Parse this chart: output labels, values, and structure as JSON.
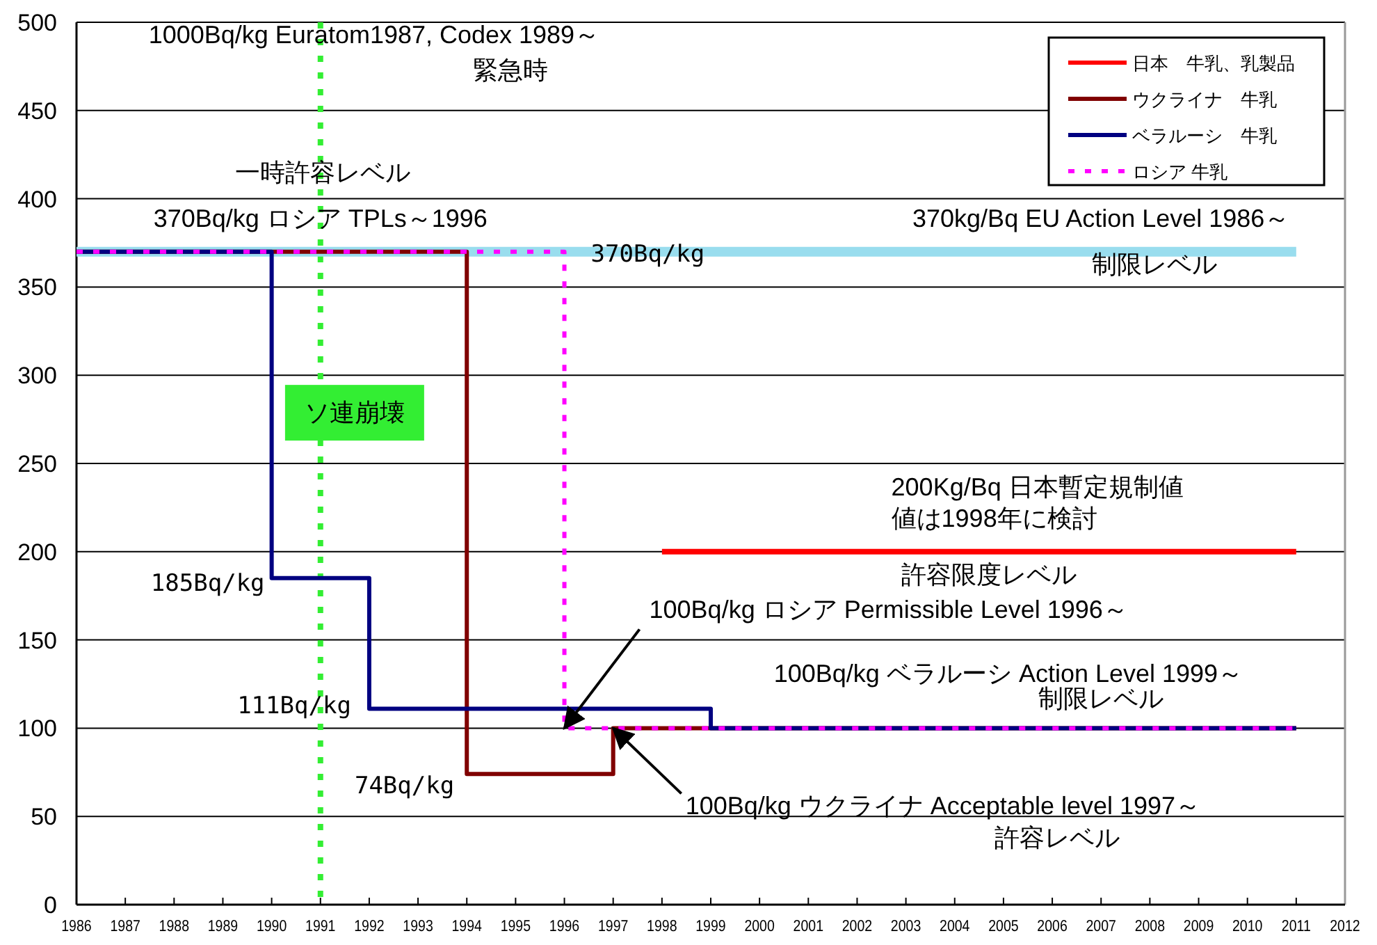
{
  "chart_data": {
    "type": "step",
    "xlim": [
      1986,
      2012
    ],
    "xticks": [
      1986,
      1987,
      1988,
      1989,
      1990,
      1991,
      1992,
      1993,
      1994,
      1995,
      1996,
      1997,
      1998,
      1999,
      2000,
      2001,
      2002,
      2003,
      2004,
      2005,
      2006,
      2007,
      2008,
      2009,
      2010,
      2011,
      2012
    ],
    "ylim": [
      0,
      500
    ],
    "yticks": [
      0,
      50,
      100,
      150,
      200,
      250,
      300,
      350,
      400,
      450,
      500
    ],
    "grid": "y",
    "legend": "top right",
    "series": [
      {
        "name": "日本　牛乳、乳製品",
        "color": "#ff0000",
        "x": [
          1998,
          2011
        ],
        "values": [
          200,
          200
        ]
      },
      {
        "name": "ウクライナ　牛乳",
        "color": "#800000",
        "x": [
          1986,
          1994,
          1997,
          2011
        ],
        "values": [
          370,
          74,
          100,
          100
        ]
      },
      {
        "name": "ベラルーシ　牛乳",
        "color": "#000080",
        "x": [
          1986,
          1990,
          1992,
          1999,
          2011
        ],
        "values": [
          370,
          185,
          111,
          100,
          100
        ]
      },
      {
        "name": "ロシア 牛乳",
        "color": "#ff00ff",
        "line_style": "dotted",
        "x": [
          1986,
          1996,
          2011
        ],
        "values": [
          370,
          100,
          100
        ]
      },
      {
        "type": "line",
        "color": "#99ddee",
        "x": [
          1986,
          2011
        ],
        "values": [
          370,
          370
        ]
      }
    ],
    "ref_lines": [
      {
        "axis": "x",
        "value": 1991,
        "color": "#33ee33",
        "line_style": "dotted"
      }
    ],
    "annotations": [
      "1000Bq/kg Euratom1987, Codex  1989～",
      "緊急時",
      "一時許容レベル",
      "370Bq/kg ロシア  TPLs～1996",
      {
        "text": "370Bq/kg",
        "x": 1996,
        "y": 370
      },
      "370kg/Bq EU Action Level  1986～",
      "制限レベル",
      "ソ連崩壊",
      "200Kg/Bq 日本暫定規制値",
      "値は1998年に検討",
      "許容限度レベル",
      {
        "text": "100Bq/kg ロシア  Permissible Level  1996～",
        "x": 1996,
        "y": 100
      },
      "100Bq/kg ベラルーシ Action Level  1999～",
      "制限レベル",
      {
        "text": "185Bq/kg",
        "x": 1990,
        "y": 185
      },
      {
        "text": "111Bq/kg",
        "x": 1992,
        "y": 111
      },
      {
        "text": "74Bq/kg",
        "x": 1994,
        "y": 74
      },
      {
        "text": "100Bq/kg ウクライナ  Acceptable level 1997～",
        "x": 1997,
        "y": 100
      },
      "許容レベル"
    ]
  }
}
